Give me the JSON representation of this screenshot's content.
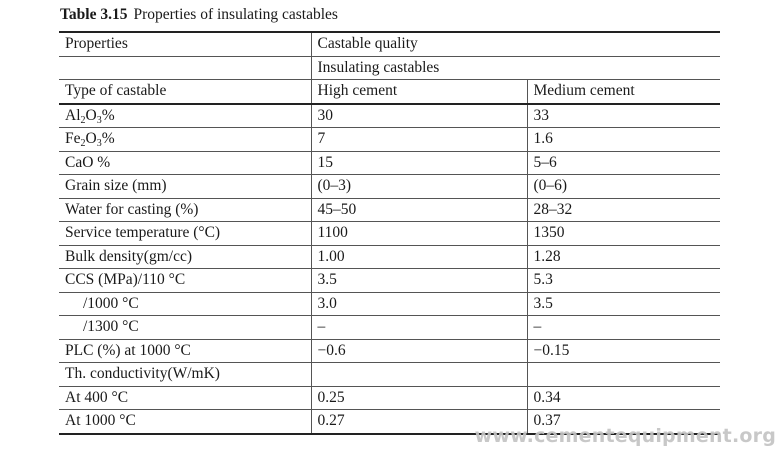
{
  "caption": {
    "label": "Table 3.15",
    "text": "Properties of insulating castables"
  },
  "header": {
    "properties": "Properties",
    "castable_quality": "Castable quality",
    "insulating_castables": "Insulating castables",
    "type_of_castable": "Type of castable",
    "high_cement": "High cement",
    "medium_cement": "Medium cement"
  },
  "rows": [
    {
      "property": "Al2O3%",
      "high": "30",
      "medium": "33"
    },
    {
      "property": "Fe2O3%",
      "high": "7",
      "medium": "1.6"
    },
    {
      "property": "CaO %",
      "high": "15",
      "medium": "5–6"
    },
    {
      "property": "Grain size (mm)",
      "high": "(0–3)",
      "medium": "(0–6)"
    },
    {
      "property": "Water for casting (%)",
      "high": "45–50",
      "medium": "28–32"
    },
    {
      "property": "Service temperature (°C)",
      "high": "1100",
      "medium": "1350"
    },
    {
      "property": "Bulk density(gm/cc)",
      "high": "1.00",
      "medium": "1.28"
    },
    {
      "property": "CCS (MPa)/110 °C",
      "high": "3.5",
      "medium": "5.3"
    },
    {
      "property": "/1000 °C",
      "high": "3.0",
      "medium": "3.5"
    },
    {
      "property": "/1300 °C",
      "high": "–",
      "medium": "–"
    },
    {
      "property": "PLC (%) at 1000 °C",
      "high": "−0.6",
      "medium": "−0.15"
    },
    {
      "property": "Th. conductivity(W/mK)",
      "high": "",
      "medium": ""
    },
    {
      "property": "At 400 °C",
      "high": "0.25",
      "medium": "0.34"
    },
    {
      "property": "At 1000 °C",
      "high": "0.27",
      "medium": "0.37"
    }
  ],
  "watermark": "www.cementequipment.org"
}
